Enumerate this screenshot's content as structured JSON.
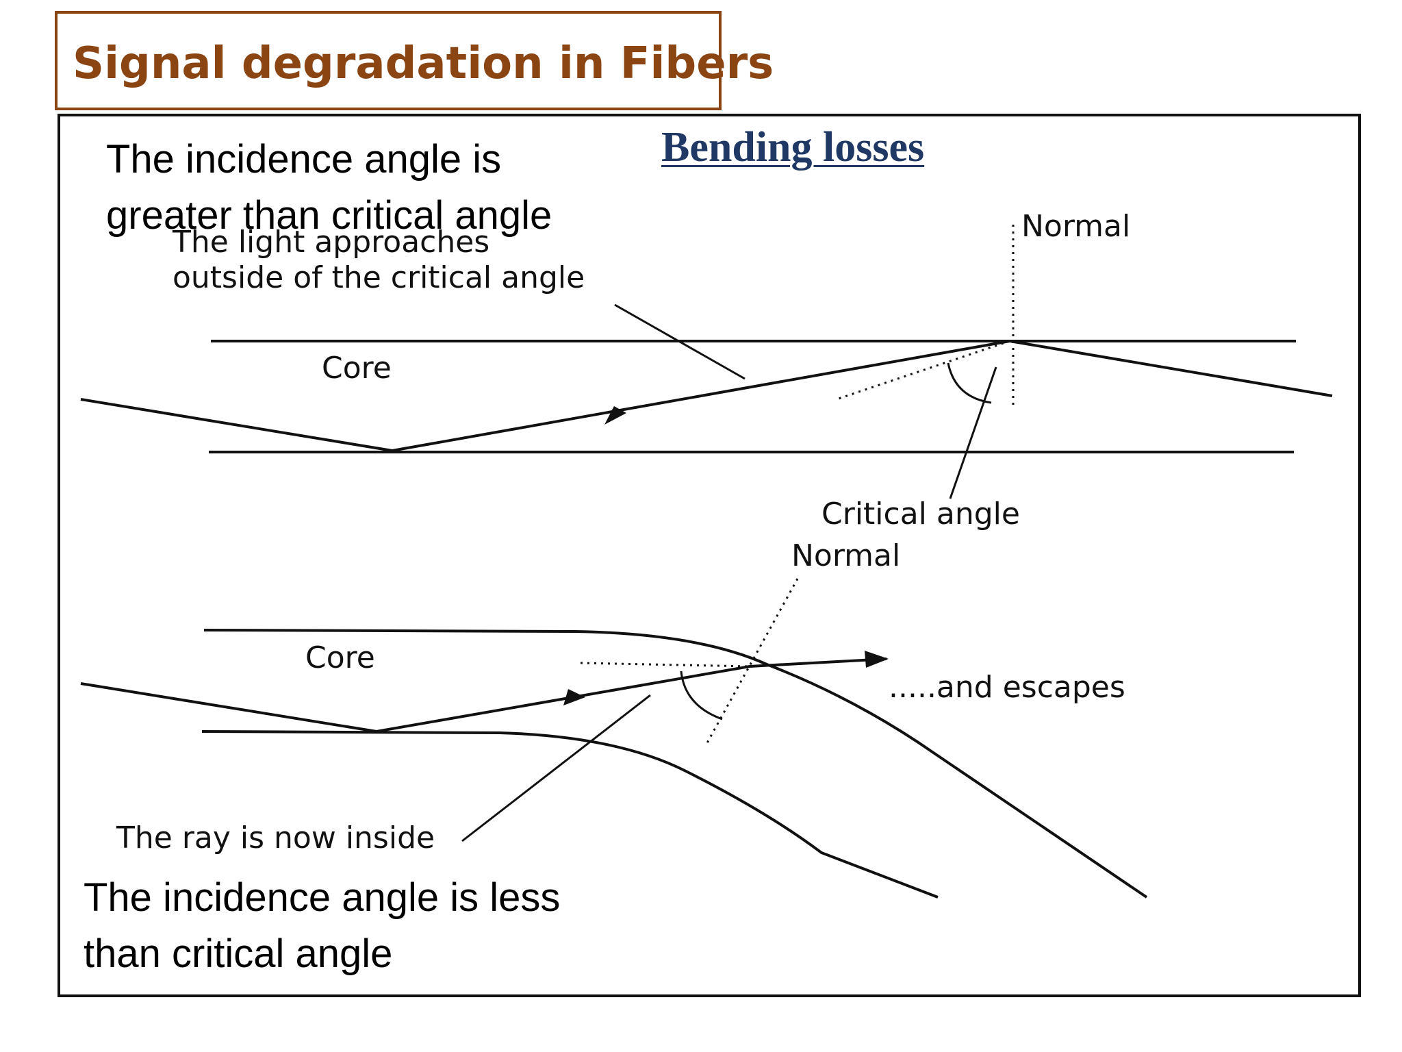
{
  "slide": {
    "title": "Signal degradation in Fibers",
    "heading": "Bending losses"
  },
  "notes": {
    "top": [
      "The incidence angle is",
      "greater than critical angle"
    ],
    "bottom": [
      "The incidence angle is less",
      "than critical angle"
    ]
  },
  "diagram_top": {
    "caption_lines": [
      "The light approaches",
      "outside of the critical angle"
    ],
    "core_label": "Core",
    "normal_label": "Normal",
    "critical_label": "Critical angle"
  },
  "diagram_bottom": {
    "core_label": "Core",
    "normal_label": "Normal",
    "escape_label": ".....and escapes",
    "caption": "The ray is now inside"
  },
  "colors": {
    "title": "#8b4513",
    "title_border": "#8b4513",
    "heading": "#1f3864",
    "frame": "#111111"
  }
}
